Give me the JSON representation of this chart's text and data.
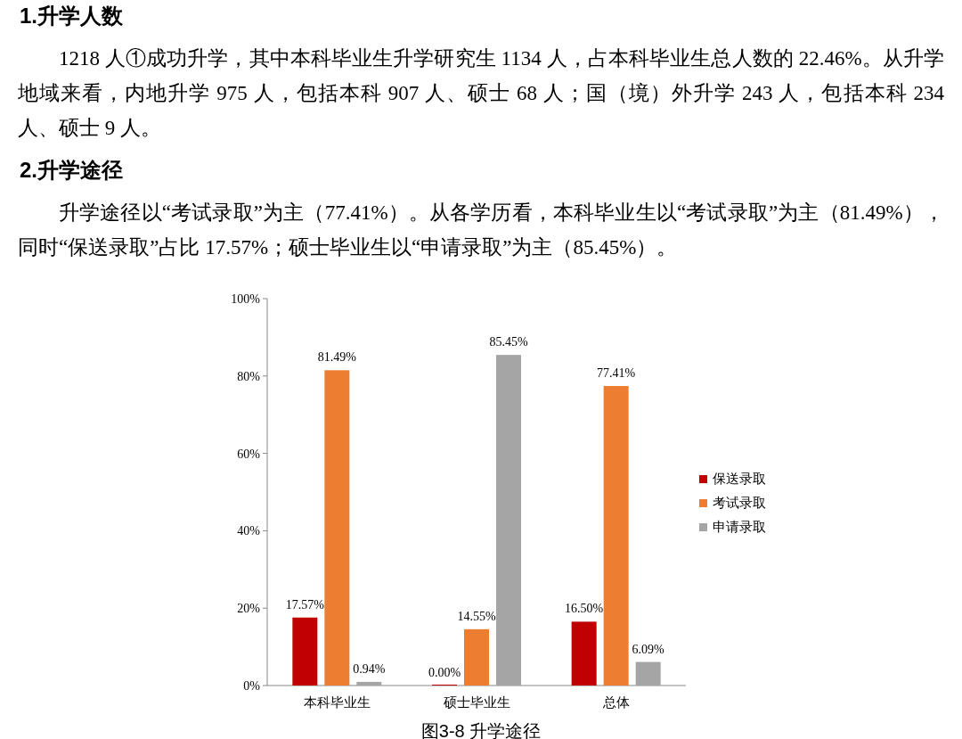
{
  "chart_data": {
    "type": "bar",
    "title": "图3-8 升学途径",
    "annotations": [
      "1.升学人数",
      "1218 人①成功升学，其中本科毕业生升学研究生 1134 人，占本科毕业生总人数的 22.46%。从升学地域来看，内地升学 975 人，包括本科 907 人、硕士 68 人；国（境）外升学 243 人，包括本科 234 人、硕士 9 人。",
      "2.升学途径",
      "升学途径以“考试录取”为主（77.41%）。从各学历看，本科毕业生以“考试录取”为主（81.49%），同时“保送录取”占比 17.57%；硕士毕业生以“申请录取”为主（85.45%）。"
    ],
    "categories": [
      "本科毕业生",
      "硕士毕业生",
      "总体"
    ],
    "series": [
      {
        "name": "保送录取",
        "color": "#c00000",
        "values": [
          17.57,
          0.0,
          16.5
        ],
        "value_labels": [
          "17.57%",
          "0.00%",
          "16.50%"
        ]
      },
      {
        "name": "考试录取",
        "color": "#ed7d31",
        "values": [
          81.49,
          14.55,
          77.41
        ],
        "value_labels": [
          "81.49%",
          "14.55%",
          "77.41%"
        ]
      },
      {
        "name": "申请录取",
        "color": "#a5a5a5",
        "values": [
          0.94,
          85.45,
          6.09
        ],
        "value_labels": [
          "0.94%",
          "85.45%",
          "6.09%"
        ]
      }
    ],
    "ylim": [
      0,
      100
    ],
    "yticks": [
      {
        "value": 0,
        "label": "0%"
      },
      {
        "value": 20,
        "label": "20%"
      },
      {
        "value": 40,
        "label": "40%"
      },
      {
        "value": 60,
        "label": "60%"
      },
      {
        "value": 80,
        "label": "80%"
      },
      {
        "value": 100,
        "label": "100%"
      }
    ],
    "legend": "right",
    "grid": false
  }
}
